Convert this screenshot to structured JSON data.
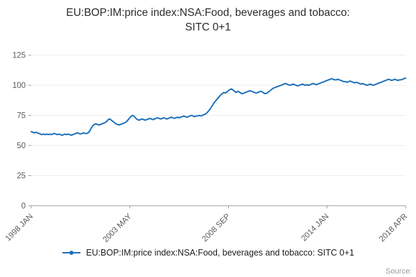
{
  "header": {
    "title_line1": "EU:BOP:IM:price index:NSA:Food, beverages and tobacco:",
    "title_line2": "SITC 0+1"
  },
  "legend": {
    "label": "EU:BOP:IM:price index:NSA:Food, beverages and tobacco: SITC 0+1"
  },
  "footer": {
    "source_label": "Source:"
  },
  "chart_data": {
    "type": "line",
    "title": "EU:BOP:IM:price index:NSA:Food, beverages and tobacco: SITC 0+1",
    "frequency": "monthly",
    "x_start": "1998 JAN",
    "x_end": "2018 APR",
    "x_tick_labels": [
      "1998 JAN",
      "2003 MAY",
      "2008 SEP",
      "2014 JAN",
      "2018 APR"
    ],
    "x_tick_indices": [
      0,
      64,
      128,
      192,
      243
    ],
    "y_ticks": [
      0,
      25,
      50,
      75,
      100,
      125
    ],
    "ylim": [
      0,
      130
    ],
    "grid": "horizontal",
    "legend_position": "bottom",
    "series": [
      {
        "name": "EU:BOP:IM:price index:NSA:Food, beverages and tobacco: SITC 0+1",
        "color": "#1d70b8",
        "values": [
          61.5,
          61.0,
          60.5,
          61.0,
          60.5,
          60.0,
          59.5,
          59.0,
          59.5,
          59.0,
          59.5,
          59.0,
          59.5,
          59.0,
          59.5,
          60.0,
          59.5,
          59.0,
          59.5,
          59.0,
          58.5,
          59.0,
          59.5,
          59.0,
          59.5,
          59.0,
          58.5,
          59.0,
          59.5,
          60.0,
          60.5,
          60.0,
          59.5,
          60.0,
          60.5,
          60.0,
          60.0,
          60.5,
          62.0,
          64.5,
          66.5,
          67.5,
          68.0,
          67.5,
          67.0,
          67.5,
          68.0,
          68.5,
          69.0,
          70.0,
          71.5,
          72.0,
          71.0,
          70.0,
          69.0,
          68.0,
          67.5,
          67.0,
          67.5,
          68.0,
          68.5,
          69.0,
          70.0,
          71.5,
          73.0,
          74.5,
          75.0,
          74.0,
          72.5,
          71.5,
          71.0,
          71.5,
          72.0,
          71.5,
          71.0,
          71.5,
          72.0,
          72.5,
          72.0,
          71.5,
          72.0,
          72.5,
          73.0,
          72.5,
          72.0,
          72.5,
          73.0,
          72.5,
          72.0,
          72.5,
          73.0,
          73.5,
          73.0,
          72.5,
          73.0,
          73.5,
          73.0,
          73.5,
          74.0,
          74.5,
          74.0,
          73.5,
          74.0,
          74.5,
          75.0,
          74.5,
          74.0,
          74.5,
          74.5,
          75.0,
          74.5,
          75.0,
          75.5,
          76.0,
          77.0,
          78.5,
          80.0,
          82.0,
          84.0,
          86.0,
          87.5,
          89.0,
          90.5,
          92.0,
          93.0,
          94.0,
          93.5,
          94.5,
          95.5,
          96.5,
          97.0,
          96.0,
          95.0,
          94.0,
          95.0,
          94.5,
          93.5,
          93.0,
          93.5,
          94.0,
          94.5,
          95.0,
          95.5,
          95.0,
          94.5,
          94.0,
          93.5,
          94.0,
          94.5,
          95.0,
          94.5,
          93.5,
          93.0,
          93.5,
          94.5,
          95.5,
          96.5,
          97.5,
          98.0,
          98.5,
          99.0,
          99.5,
          100.0,
          100.5,
          101.0,
          101.5,
          101.0,
          100.5,
          100.0,
          100.5,
          101.0,
          100.5,
          100.0,
          99.5,
          100.0,
          100.5,
          101.0,
          100.5,
          100.0,
          100.5,
          100.0,
          100.5,
          101.0,
          101.5,
          101.0,
          100.5,
          101.0,
          101.5,
          102.0,
          102.5,
          103.0,
          103.5,
          104.0,
          104.5,
          105.0,
          105.5,
          105.0,
          104.5,
          104.5,
          105.0,
          104.5,
          104.0,
          103.5,
          103.0,
          103.0,
          102.5,
          103.0,
          103.5,
          103.0,
          102.5,
          102.0,
          102.5,
          102.0,
          101.5,
          101.0,
          101.5,
          101.0,
          100.5,
          100.0,
          100.5,
          101.0,
          100.5,
          100.0,
          100.5,
          101.0,
          101.5,
          102.0,
          102.5,
          103.0,
          103.5,
          104.0,
          104.5,
          105.0,
          104.5,
          104.0,
          104.5,
          105.0,
          104.5,
          104.0,
          104.5,
          104.5,
          105.0,
          105.5,
          106.0
        ]
      }
    ]
  }
}
